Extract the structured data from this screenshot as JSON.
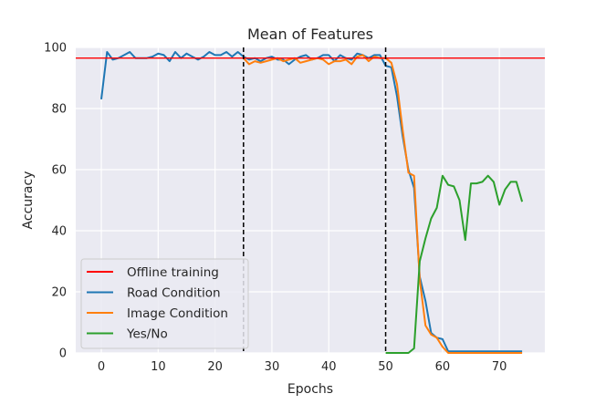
{
  "chart_data": {
    "type": "line",
    "title": "Mean of Features",
    "xlabel": "Epochs",
    "ylabel": "Accuracy",
    "xlim": [
      -4.5,
      78
    ],
    "ylim": [
      0,
      100
    ],
    "xticks": [
      0,
      10,
      20,
      30,
      40,
      50,
      60,
      70
    ],
    "yticks": [
      0,
      20,
      40,
      60,
      80,
      100
    ],
    "grid": true,
    "background": "#eaeaf2",
    "legend_position": "lower-left",
    "hlines": [
      {
        "name": "Offline training",
        "y": 96.5,
        "color": "#ff0000"
      }
    ],
    "vlines": [
      {
        "x": 25,
        "color": "#000000",
        "style": "dashed"
      },
      {
        "x": 50,
        "color": "#000000",
        "style": "dashed"
      }
    ],
    "series": [
      {
        "name": "Road Condition",
        "color": "#1f77b4",
        "x": [
          0,
          1,
          2,
          3,
          4,
          5,
          6,
          7,
          8,
          9,
          10,
          11,
          12,
          13,
          14,
          15,
          16,
          17,
          18,
          19,
          20,
          21,
          22,
          23,
          24,
          25,
          26,
          27,
          28,
          29,
          30,
          31,
          32,
          33,
          34,
          35,
          36,
          37,
          38,
          39,
          40,
          41,
          42,
          43,
          44,
          45,
          46,
          47,
          48,
          49,
          50,
          51,
          52,
          53,
          54,
          55,
          56,
          57,
          58,
          59,
          60,
          61,
          62,
          63,
          64,
          65,
          66,
          67,
          68,
          69,
          70,
          71,
          72,
          73,
          74
        ],
        "y": [
          83,
          98.5,
          96,
          96.5,
          97.5,
          98.5,
          96.5,
          96.5,
          96.5,
          97,
          98,
          97.5,
          95.5,
          98.5,
          96.5,
          98,
          97,
          96,
          97,
          98.5,
          97.5,
          97.5,
          98.5,
          97,
          98.5,
          97,
          96,
          96.5,
          95.5,
          96.5,
          97,
          96,
          96,
          94.5,
          96,
          97,
          97.5,
          96,
          96.5,
          97.5,
          97.5,
          95.5,
          97.5,
          96.5,
          96,
          98,
          97.5,
          96.5,
          97.5,
          97.5,
          94,
          93.5,
          84,
          71,
          60,
          54,
          25,
          17,
          6.5,
          5,
          4.5,
          0.5,
          0.5,
          0.5,
          0.5,
          0.5,
          0.5,
          0.5,
          0.5,
          0.5,
          0.5,
          0.5,
          0.5,
          0.5,
          0.5
        ]
      },
      {
        "name": "Image Condition",
        "color": "#ff7f0e",
        "x": [
          25,
          26,
          27,
          28,
          29,
          30,
          31,
          32,
          33,
          34,
          35,
          36,
          37,
          38,
          39,
          40,
          41,
          42,
          43,
          44,
          45,
          46,
          47,
          48,
          49,
          50,
          51,
          52,
          53,
          54,
          55,
          56,
          57,
          58,
          59,
          60,
          61,
          62,
          63,
          64,
          65,
          66,
          67,
          68,
          69,
          70,
          71,
          72,
          73,
          74
        ],
        "y": [
          96.5,
          94.5,
          95.5,
          95,
          95.5,
          96,
          96.5,
          95.5,
          96,
          96.5,
          95,
          95.5,
          96,
          96.5,
          96,
          94.5,
          95.5,
          95.5,
          96,
          94.5,
          97,
          97.5,
          95.5,
          97,
          96.5,
          96.5,
          95,
          88,
          73,
          59,
          58,
          24,
          9,
          6,
          5,
          2,
          0,
          0,
          0,
          0,
          0,
          0,
          0,
          0,
          0,
          0,
          0,
          0,
          0,
          0
        ]
      },
      {
        "name": "Yes/No",
        "color": "#2ca02c",
        "x": [
          50,
          51,
          52,
          53,
          54,
          55,
          56,
          57,
          58,
          59,
          60,
          61,
          62,
          63,
          64,
          65,
          66,
          67,
          68,
          69,
          70,
          71,
          72,
          73,
          74
        ],
        "y": [
          0,
          0,
          0,
          0,
          0,
          1.5,
          30,
          37.5,
          44,
          47.5,
          58,
          55,
          54.5,
          50,
          37,
          55.5,
          55.5,
          56,
          58,
          56,
          48.5,
          53.5,
          56,
          56,
          49.5
        ]
      }
    ]
  }
}
